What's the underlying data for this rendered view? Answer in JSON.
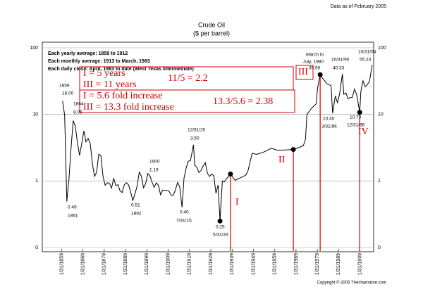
{
  "chart_data": {
    "type": "line",
    "title": "Crude Oil",
    "subtitle": "($ per barrel)",
    "note": "Data as of February 2005",
    "legend_notes": [
      "Each yearly average: 1859 to 1912",
      "Each monthly average: 1913 to March, 1983",
      "Each daily close: April, 1983 to date (West Texas Intermediate)"
    ],
    "credit": "Copyright © 2005 Thechartstore.com",
    "log_y": true,
    "grid": true,
    "xlim": [
      1850,
      2005.5
    ],
    "ylim": [
      0.1,
      100
    ],
    "yticks": [
      100,
      10,
      1,
      {
        "value": 0.1,
        "label": "0"
      }
    ],
    "xticks": [
      {
        "value": 1859.08,
        "label": "1/31/1859"
      },
      {
        "value": 1869.08,
        "label": "1/31/1869"
      },
      {
        "value": 1879.08,
        "label": "1/31/1879"
      },
      {
        "value": 1889.08,
        "label": "1/31/1889"
      },
      {
        "value": 1899.08,
        "label": "1/31/1899"
      },
      {
        "value": 1909.08,
        "label": "1/31/1909"
      },
      {
        "value": 1919.08,
        "label": "1/31/1919"
      },
      {
        "value": 1929.08,
        "label": "1/31/1929"
      },
      {
        "value": 1939.08,
        "label": "1/31/1939"
      },
      {
        "value": 1949.08,
        "label": "1/31/1949"
      },
      {
        "value": 1959.08,
        "label": "1/31/1959"
      },
      {
        "value": 1969.08,
        "label": "1/31/1969"
      },
      {
        "value": 1979.08,
        "label": "1/31/1979"
      },
      {
        "value": 1989.08,
        "label": "1/31/1989"
      },
      {
        "value": 1999.08,
        "label": "1/31/1999"
      }
    ],
    "x": [
      1859.5,
      1860.5,
      1861.5,
      1862.5,
      1863.5,
      1864.5,
      1865.5,
      1866.5,
      1867.5,
      1868.5,
      1869.5,
      1870.5,
      1871.5,
      1872.5,
      1873.5,
      1874.5,
      1875.5,
      1876.5,
      1877.5,
      1878.5,
      1879.5,
      1880.5,
      1881.5,
      1882.5,
      1883.5,
      1884.5,
      1885.5,
      1886.5,
      1887.5,
      1888.5,
      1889.5,
      1890.5,
      1891.5,
      1892.5,
      1893.5,
      1894.5,
      1895.5,
      1896.5,
      1897.5,
      1898.5,
      1899.5,
      1900.5,
      1901.5,
      1902.5,
      1903.5,
      1904.5,
      1905.5,
      1906.5,
      1907.5,
      1908.5,
      1909.5,
      1910.5,
      1911.5,
      1912.5,
      1913.5,
      1914.5,
      1915.58,
      1916.5,
      1917.5,
      1918.5,
      1919.5,
      1920.96,
      1921.5,
      1922.5,
      1923.5,
      1924.5,
      1925.5,
      1926.5,
      1927.5,
      1928.5,
      1929.5,
      1930.5,
      1931.5,
      1932.5,
      1933.4,
      1934.5,
      1935.5,
      1936.5,
      1937.5,
      1938.3,
      1940.5,
      1945.5,
      1946.5,
      1947.5,
      1948.5,
      1950.5,
      1953.5,
      1957.5,
      1960.5,
      1967.8,
      1970.5,
      1972.5,
      1973.5,
      1974.2,
      1976.5,
      1978.5,
      1979.2,
      1980.4,
      1981.5,
      1982.5,
      1983.5,
      1984.5,
      1985.5,
      1986.25,
      1987.5,
      1988.5,
      1989.5,
      1990.83,
      1991.5,
      1992.5,
      1993.5,
      1994.5,
      1995.5,
      1996.5,
      1997.5,
      1998.96,
      1999.5,
      2000.5,
      2001.5,
      2002.5,
      2003.5,
      2004.83
    ],
    "series": [
      {
        "color": "#000000",
        "values": [
          16.0,
          9.6,
          0.49,
          1.05,
          3.15,
          8.06,
          6.59,
          3.74,
          2.41,
          3.63,
          5.64,
          3.86,
          4.34,
          3.64,
          1.83,
          1.17,
          1.35,
          2.52,
          2.38,
          1.17,
          0.86,
          0.94,
          0.92,
          0.78,
          1.1,
          0.85,
          0.88,
          0.71,
          0.67,
          0.88,
          0.94,
          0.87,
          0.67,
          0.51,
          0.64,
          0.84,
          1.36,
          1.18,
          0.79,
          0.91,
          1.29,
          1.19,
          0.96,
          0.8,
          0.94,
          0.86,
          0.62,
          0.73,
          0.72,
          0.72,
          0.7,
          0.61,
          0.61,
          0.74,
          0.95,
          0.81,
          0.4,
          1.1,
          1.56,
          1.98,
          2.01,
          3.5,
          1.73,
          1.61,
          1.34,
          1.43,
          1.68,
          1.88,
          1.3,
          1.17,
          1.27,
          1.19,
          0.65,
          0.87,
          0.25,
          1.0,
          0.97,
          1.09,
          1.18,
          1.27,
          1.02,
          1.22,
          1.41,
          1.93,
          2.6,
          2.51,
          2.68,
          3.09,
          2.88,
          2.97,
          3.18,
          3.39,
          4.2,
          10.0,
          12.5,
          14.4,
          25,
          39.5,
          35,
          32,
          29,
          28,
          27,
          10.4,
          19,
          15,
          20,
          40.33,
          20,
          21,
          17,
          18,
          18,
          24,
          20,
          10.73,
          22,
          32,
          26,
          28,
          31,
          55.23
        ]
      }
    ],
    "point_labels": [
      "1859",
      "16.00",
      "1864",
      "8.06",
      "0.49",
      "1861",
      "1900",
      "1.19",
      "0.51",
      "1892",
      "12/31/20",
      "3.50",
      "0.40",
      "7/31/15",
      "0.25",
      "5/31/33",
      "March to",
      "July, 1980",
      "39.50",
      "10/31/90",
      "40.33",
      "10.40",
      "3/31/86",
      "10.73",
      "12/31/98",
      "10/31/04",
      "55.23"
    ],
    "annotations": [
      "I = 5 years",
      "III = 11 years",
      "11/5 = 2.2",
      "I = 5.6 fold increase",
      "III = 13.3 fold increase",
      "13.3/5.6 = 2.38",
      "I",
      "II",
      "III",
      "IV"
    ]
  }
}
